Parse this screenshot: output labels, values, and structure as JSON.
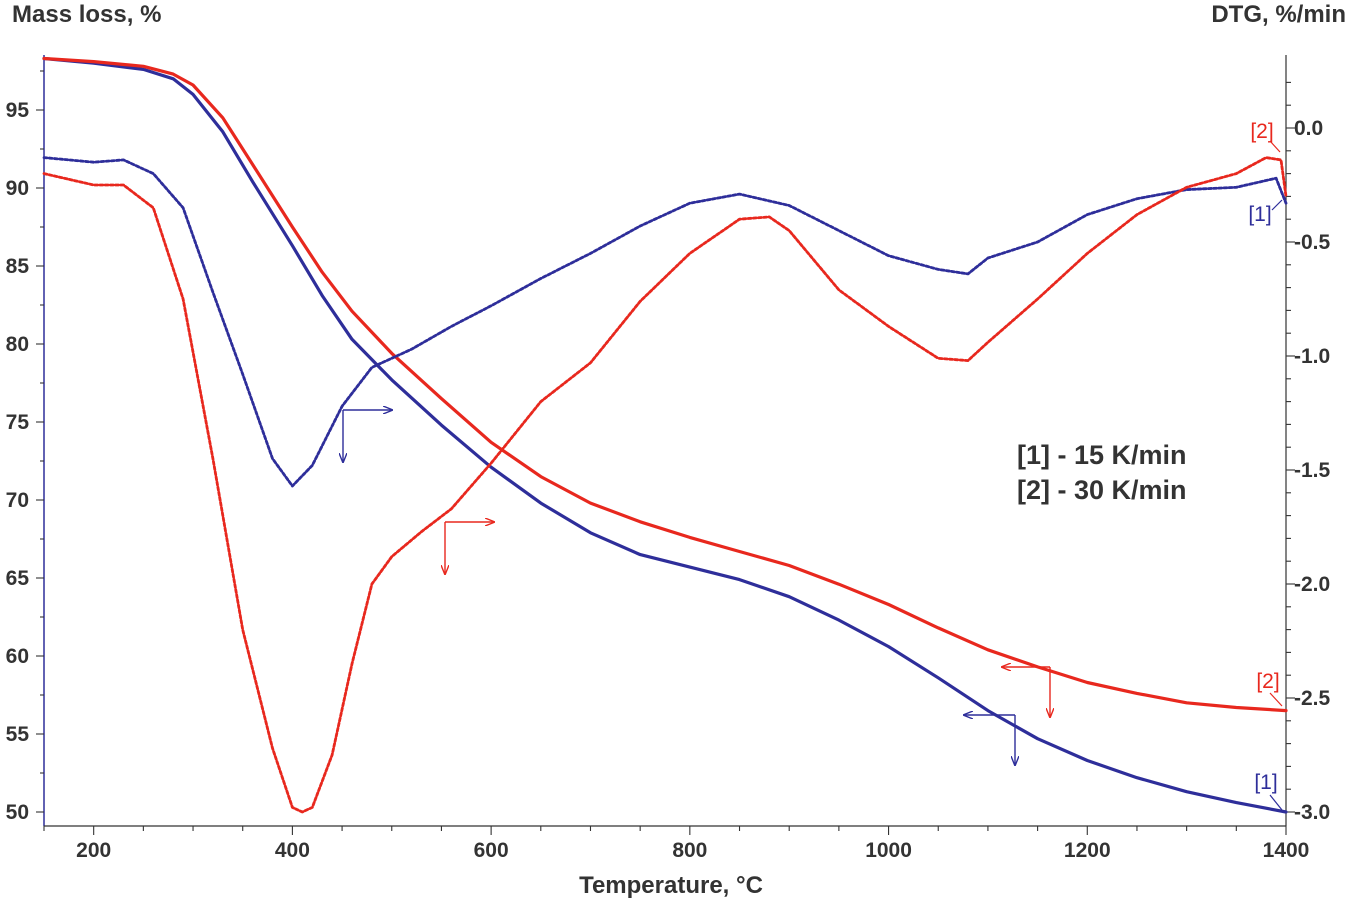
{
  "chart_data": {
    "type": "line",
    "left_axis_title": "Mass loss, %",
    "right_axis_title": "DTG, %/min",
    "xlabel": "Temperature, °C",
    "xlim": [
      150,
      1400
    ],
    "ylim_left": [
      49.5,
      98.5
    ],
    "ylim_right": [
      -3.0,
      0.3
    ],
    "x_ticks": [
      "200",
      "400",
      "600",
      "800",
      "1000",
      "1200",
      "1400"
    ],
    "y_ticks_left": [
      "50",
      "55",
      "60",
      "65",
      "70",
      "75",
      "80",
      "85",
      "90",
      "95"
    ],
    "y_ticks_right": [
      "-3.0",
      "-2.5",
      "-2.0",
      "-1.5",
      "-1.0",
      "-0.5",
      "0.0"
    ],
    "legend": [
      "[1] - 15 K/min",
      "[2] - 30 K/min"
    ],
    "colors": {
      "curve1": "#2e2e9a",
      "curve2": "#e8281e"
    },
    "series": [
      {
        "name": "[1]",
        "kind": "mass",
        "axis": "left",
        "color": "#2e2e9a",
        "x": [
          150,
          200,
          250,
          280,
          300,
          330,
          360,
          400,
          430,
          460,
          500,
          550,
          600,
          650,
          700,
          750,
          800,
          850,
          900,
          950,
          1000,
          1050,
          1100,
          1150,
          1200,
          1250,
          1300,
          1350,
          1400
        ],
        "y": [
          98.3,
          98.0,
          97.6,
          97.0,
          96.0,
          93.6,
          90.4,
          86.3,
          83.1,
          80.3,
          77.7,
          74.8,
          72.1,
          69.8,
          67.9,
          66.5,
          65.7,
          64.9,
          63.8,
          62.3,
          60.6,
          58.6,
          56.5,
          54.7,
          53.3,
          52.2,
          51.3,
          50.6,
          50.0
        ]
      },
      {
        "name": "[2]",
        "kind": "mass",
        "axis": "left",
        "color": "#e8281e",
        "x": [
          150,
          200,
          250,
          280,
          300,
          330,
          360,
          400,
          430,
          460,
          500,
          550,
          600,
          650,
          700,
          750,
          800,
          850,
          900,
          950,
          1000,
          1050,
          1100,
          1150,
          1200,
          1250,
          1300,
          1350,
          1400
        ],
        "y": [
          98.3,
          98.1,
          97.8,
          97.3,
          96.6,
          94.5,
          91.5,
          87.5,
          84.6,
          82.1,
          79.4,
          76.5,
          73.7,
          71.5,
          69.8,
          68.6,
          67.6,
          66.7,
          65.8,
          64.6,
          63.3,
          61.8,
          60.4,
          59.3,
          58.3,
          57.6,
          57.0,
          56.7,
          56.5
        ]
      },
      {
        "name": "[1]",
        "kind": "dtg",
        "axis": "right",
        "color": "#2e2e9a",
        "x": [
          150,
          200,
          230,
          260,
          290,
          320,
          350,
          380,
          400,
          420,
          450,
          480,
          520,
          560,
          600,
          650,
          700,
          750,
          800,
          850,
          900,
          950,
          1000,
          1050,
          1080,
          1100,
          1150,
          1200,
          1250,
          1300,
          1350,
          1390,
          1400
        ],
        "y": [
          -0.13,
          -0.15,
          -0.14,
          -0.2,
          -0.35,
          -0.72,
          -1.08,
          -1.45,
          -1.57,
          -1.48,
          -1.22,
          -1.05,
          -0.97,
          -0.87,
          -0.78,
          -0.66,
          -0.55,
          -0.43,
          -0.33,
          -0.29,
          -0.34,
          -0.45,
          -0.56,
          -0.62,
          -0.64,
          -0.57,
          -0.5,
          -0.38,
          -0.31,
          -0.27,
          -0.26,
          -0.22,
          -0.33
        ]
      },
      {
        "name": "[2]",
        "kind": "dtg",
        "axis": "right",
        "color": "#e8281e",
        "x": [
          150,
          200,
          230,
          260,
          290,
          320,
          350,
          380,
          400,
          410,
          420,
          440,
          460,
          480,
          500,
          530,
          560,
          600,
          650,
          700,
          750,
          800,
          850,
          880,
          900,
          950,
          1000,
          1050,
          1080,
          1100,
          1150,
          1200,
          1250,
          1300,
          1350,
          1380,
          1395,
          1400
        ],
        "y": [
          -0.2,
          -0.25,
          -0.25,
          -0.35,
          -0.75,
          -1.45,
          -2.2,
          -2.72,
          -2.98,
          -3.0,
          -2.98,
          -2.75,
          -2.35,
          -2.0,
          -1.88,
          -1.77,
          -1.67,
          -1.47,
          -1.2,
          -1.03,
          -0.76,
          -0.55,
          -0.4,
          -0.39,
          -0.45,
          -0.71,
          -0.87,
          -1.01,
          -1.02,
          -0.94,
          -0.75,
          -0.55,
          -0.38,
          -0.26,
          -0.2,
          -0.13,
          -0.14,
          -0.3
        ]
      }
    ],
    "curve_tags": [
      "[1]",
      "[2]",
      "[1]",
      "[2]"
    ]
  }
}
